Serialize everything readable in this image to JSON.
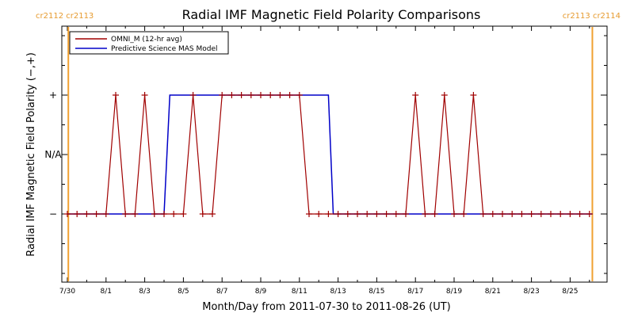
{
  "chart_data": {
    "type": "line",
    "title": "Radial IMF Magnetic Field Polarity Comparisons",
    "xlabel": "Month/Day from 2011-07-30 to 2011-08-26 (UT)",
    "ylabel": "Radial IMF Magnetic Field Polarity (−,+)",
    "x_ticks": [
      {
        "x": 0,
        "label": "7/30"
      },
      {
        "x": 2,
        "label": "8/1"
      },
      {
        "x": 4,
        "label": "8/3"
      },
      {
        "x": 6,
        "label": "8/5"
      },
      {
        "x": 8,
        "label": "8/7"
      },
      {
        "x": 10,
        "label": "8/9"
      },
      {
        "x": 12,
        "label": "8/11"
      },
      {
        "x": 14,
        "label": "8/13"
      },
      {
        "x": 16,
        "label": "8/15"
      },
      {
        "x": 18,
        "label": "8/17"
      },
      {
        "x": 20,
        "label": "8/19"
      },
      {
        "x": 22,
        "label": "8/21"
      },
      {
        "x": 24,
        "label": "8/23"
      },
      {
        "x": 26,
        "label": "8/25"
      }
    ],
    "xlim": [
      0,
      28
    ],
    "y_ticks": [
      {
        "y": 1,
        "label": "+"
      },
      {
        "y": 0,
        "label": "N/A"
      },
      {
        "y": -1,
        "label": "−"
      }
    ],
    "ylim": [
      -2,
      2
    ],
    "cr_markers": [
      {
        "x": 0.05,
        "label": "cr2112 cr2113",
        "anchor": "start"
      },
      {
        "x": 27.15,
        "label": "cr2113 cr2114",
        "anchor": "end"
      }
    ],
    "cr_line_color": "#f0a030",
    "series": [
      {
        "name": "OMNI_M (12-hr avg)",
        "color": "#a00000",
        "marker": "+",
        "x": [
          0.0,
          0.5,
          1.0,
          1.5,
          2.0,
          2.5,
          3.0,
          3.5,
          4.0,
          4.5,
          5.0,
          5.5,
          6.0,
          6.5,
          7.0,
          7.5,
          8.0,
          8.5,
          9.0,
          9.5,
          10.0,
          10.5,
          11.0,
          11.5,
          12.0,
          12.5,
          13.0,
          13.5,
          14.0,
          14.5,
          15.0,
          15.5,
          16.0,
          16.5,
          17.0,
          17.5,
          18.0,
          18.5,
          19.0,
          19.5,
          20.0,
          20.5,
          21.0,
          21.5,
          22.0,
          22.5,
          23.0,
          23.5,
          24.0,
          24.5,
          25.0,
          25.5,
          26.0,
          26.5,
          27.0
        ],
        "y": [
          -1,
          -1,
          -1,
          -1,
          -1,
          1,
          -1,
          -1,
          1,
          -1,
          -1,
          -1,
          -1,
          1,
          -1,
          -1,
          1,
          1,
          1,
          1,
          1,
          1,
          1,
          1,
          1,
          -1,
          -1,
          -1,
          -1,
          -1,
          -1,
          -1,
          -1,
          -1,
          -1,
          -1,
          1,
          -1,
          -1,
          1,
          -1,
          -1,
          1,
          -1,
          -1,
          -1,
          -1,
          -1,
          -1,
          -1,
          -1,
          -1,
          -1,
          -1,
          -1
        ]
      },
      {
        "name": "Predictive Science MAS Model",
        "color": "#0000c8",
        "x": [
          0.0,
          5.0,
          5.3,
          13.5,
          13.75,
          27.15
        ],
        "y": [
          -1,
          -1,
          1,
          1,
          -1,
          -1
        ]
      }
    ]
  }
}
